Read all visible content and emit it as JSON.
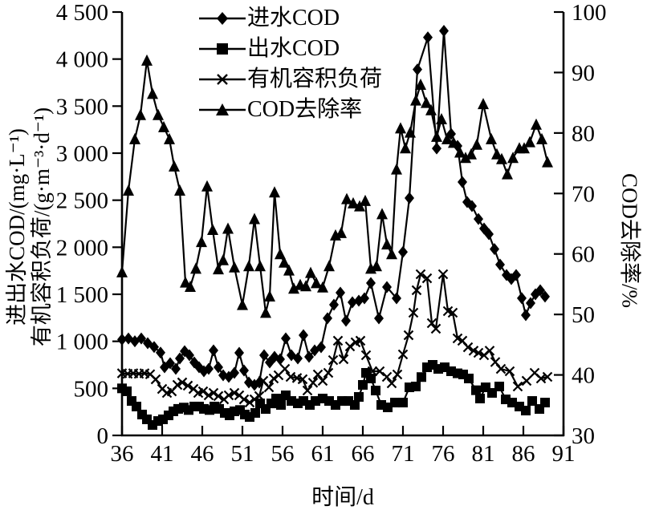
{
  "figure": {
    "background": "#ffffff",
    "line_color": "#000000"
  },
  "chart_data": {
    "type": "line",
    "title": "",
    "grid": false,
    "legend_position": "top-center-inside",
    "x_axis": {
      "label": "时间/d",
      "min": 36,
      "max": 91,
      "tick_step": 5,
      "tick_labels": [
        "36",
        "41",
        "46",
        "51",
        "56",
        "61",
        "66",
        "71",
        "76",
        "81",
        "86",
        "91"
      ]
    },
    "y_left": {
      "label_line1": "进出水COD/(mg·L⁻¹)",
      "label_line2": "有机容积负荷/(g·m⁻³·d⁻¹)",
      "min": 0,
      "max": 4500,
      "tick_step": 500,
      "tick_labels": [
        "0",
        "500",
        "1 000",
        "1 500",
        "2 000",
        "2 500",
        "3 000",
        "3 500",
        "4 000",
        "4 500"
      ]
    },
    "y_right": {
      "label": "COD去除率/%",
      "min": 30,
      "max": 100,
      "tick_step": 10,
      "tick_labels": [
        "30",
        "40",
        "50",
        "60",
        "70",
        "80",
        "90",
        "100"
      ]
    },
    "series": [
      {
        "name": "进水COD",
        "marker": "diamond",
        "axis": "left",
        "color": "#000000",
        "points": [
          [
            36,
            1020
          ],
          [
            36.8,
            1030
          ],
          [
            37.6,
            1000
          ],
          [
            38.4,
            1030
          ],
          [
            39.2,
            980
          ],
          [
            40,
            940
          ],
          [
            40.8,
            880
          ],
          [
            41.3,
            724
          ],
          [
            42,
            767
          ],
          [
            42.7,
            707
          ],
          [
            43.2,
            818
          ],
          [
            43.8,
            895
          ],
          [
            44.4,
            852
          ],
          [
            45,
            776
          ],
          [
            45.6,
            724
          ],
          [
            46.2,
            682
          ],
          [
            46.8,
            707
          ],
          [
            47.4,
            903
          ],
          [
            48,
            724
          ],
          [
            48.6,
            639
          ],
          [
            49.3,
            622
          ],
          [
            50,
            665
          ],
          [
            50.6,
            878
          ],
          [
            51.2,
            690
          ],
          [
            51.8,
            563
          ],
          [
            52.5,
            537
          ],
          [
            53.1,
            563
          ],
          [
            53.7,
            852
          ],
          [
            54.4,
            776
          ],
          [
            55,
            835
          ],
          [
            55.7,
            810
          ],
          [
            56.4,
            1031
          ],
          [
            57.1,
            852
          ],
          [
            57.9,
            818
          ],
          [
            58.6,
            1065
          ],
          [
            59.3,
            835
          ],
          [
            60,
            903
          ],
          [
            60.8,
            937
          ],
          [
            61.6,
            1245
          ],
          [
            62.4,
            1389
          ],
          [
            63.2,
            1517
          ],
          [
            63.9,
            1219
          ],
          [
            64.7,
            1415
          ],
          [
            65.5,
            1432
          ],
          [
            66.2,
            1457
          ],
          [
            67,
            1619
          ],
          [
            68,
            1244
          ],
          [
            69,
            1577
          ],
          [
            70.2,
            1457
          ],
          [
            71,
            1950
          ],
          [
            71.8,
            2523
          ],
          [
            72.8,
            3890
          ],
          [
            74.1,
            4230
          ],
          [
            75.2,
            3050
          ],
          [
            76.1,
            4300
          ],
          [
            77,
            3205
          ],
          [
            77.8,
            3077
          ],
          [
            78.4,
            2693
          ],
          [
            79,
            2480
          ],
          [
            79.6,
            2438
          ],
          [
            80.4,
            2300
          ],
          [
            81.1,
            2199
          ],
          [
            81.7,
            2139
          ],
          [
            82.4,
            1980
          ],
          [
            83.1,
            1815
          ],
          [
            83.9,
            1705
          ],
          [
            84.5,
            1662
          ],
          [
            85.1,
            1705
          ],
          [
            85.8,
            1458
          ],
          [
            86.3,
            1278
          ],
          [
            86.9,
            1406
          ],
          [
            87.5,
            1500
          ],
          [
            88.1,
            1543
          ],
          [
            88.7,
            1475
          ]
        ]
      },
      {
        "name": "出水COD",
        "marker": "square",
        "axis": "left",
        "color": "#000000",
        "points": [
          [
            36,
            500
          ],
          [
            36.6,
            469
          ],
          [
            37.2,
            366
          ],
          [
            37.8,
            307
          ],
          [
            38.5,
            222
          ],
          [
            39.1,
            171
          ],
          [
            39.8,
            111
          ],
          [
            40.5,
            153
          ],
          [
            41.1,
            171
          ],
          [
            41.8,
            213
          ],
          [
            42.4,
            256
          ],
          [
            43,
            282
          ],
          [
            43.7,
            296
          ],
          [
            44.3,
            270
          ],
          [
            45,
            307
          ],
          [
            45.6,
            307
          ],
          [
            46.2,
            282
          ],
          [
            46.9,
            270
          ],
          [
            47.5,
            307
          ],
          [
            48.1,
            282
          ],
          [
            48.8,
            239
          ],
          [
            49.4,
            213
          ],
          [
            50,
            256
          ],
          [
            50.7,
            270
          ],
          [
            51.3,
            222
          ],
          [
            51.9,
            196
          ],
          [
            52.6,
            239
          ],
          [
            53.2,
            340
          ],
          [
            53.9,
            281
          ],
          [
            54.6,
            340
          ],
          [
            55.2,
            392
          ],
          [
            55.8,
            324
          ],
          [
            56.4,
            426
          ],
          [
            57.1,
            366
          ],
          [
            57.9,
            341
          ],
          [
            58.6,
            366
          ],
          [
            59.4,
            324
          ],
          [
            60.1,
            366
          ],
          [
            61,
            392
          ],
          [
            61.8,
            366
          ],
          [
            62.6,
            324
          ],
          [
            63.4,
            366
          ],
          [
            64.2,
            366
          ],
          [
            65,
            324
          ],
          [
            65.5,
            409
          ],
          [
            66,
            537
          ],
          [
            66.4,
            665
          ],
          [
            67,
            605
          ],
          [
            67.6,
            477
          ],
          [
            68.3,
            324
          ],
          [
            69.1,
            298
          ],
          [
            70,
            349
          ],
          [
            71,
            349
          ],
          [
            71.8,
            511
          ],
          [
            72.6,
            520
          ],
          [
            73.3,
            620
          ],
          [
            74,
            724
          ],
          [
            74.7,
            750
          ],
          [
            75.4,
            707
          ],
          [
            76.2,
            724
          ],
          [
            77,
            682
          ],
          [
            77.8,
            660
          ],
          [
            78.5,
            648
          ],
          [
            79.2,
            605
          ],
          [
            80.1,
            480
          ],
          [
            80.6,
            392
          ],
          [
            81.3,
            511
          ],
          [
            82.1,
            452
          ],
          [
            83,
            520
          ],
          [
            83.8,
            383
          ],
          [
            84.6,
            349
          ],
          [
            85.5,
            307
          ],
          [
            86.3,
            264
          ],
          [
            87.1,
            366
          ],
          [
            88,
            281
          ],
          [
            88.7,
            349
          ]
        ]
      },
      {
        "name": "有机容积负荷",
        "marker": "x",
        "axis": "left",
        "color": "#000000",
        "points": [
          [
            36,
            660
          ],
          [
            36.7,
            655
          ],
          [
            37.4,
            660
          ],
          [
            38.1,
            655
          ],
          [
            38.8,
            660
          ],
          [
            39.5,
            650
          ],
          [
            40.2,
            596
          ],
          [
            41,
            494
          ],
          [
            41.6,
            452
          ],
          [
            42.2,
            468
          ],
          [
            42.9,
            537
          ],
          [
            43.5,
            563
          ],
          [
            44.2,
            529
          ],
          [
            44.9,
            494
          ],
          [
            45.5,
            452
          ],
          [
            46.1,
            468
          ],
          [
            46.8,
            426
          ],
          [
            47.4,
            452
          ],
          [
            48,
            418
          ],
          [
            48.7,
            383
          ],
          [
            49.3,
            426
          ],
          [
            50,
            452
          ],
          [
            50.6,
            426
          ],
          [
            51.2,
            383
          ],
          [
            51.9,
            350
          ],
          [
            52.5,
            383
          ],
          [
            53.1,
            418
          ],
          [
            53.6,
            580
          ],
          [
            54.3,
            511
          ],
          [
            54.9,
            605
          ],
          [
            55.5,
            639
          ],
          [
            56.3,
            707
          ],
          [
            57,
            622
          ],
          [
            57.8,
            610
          ],
          [
            58.5,
            597
          ],
          [
            59.1,
            477
          ],
          [
            59.8,
            560
          ],
          [
            60.4,
            648
          ],
          [
            61,
            580
          ],
          [
            61.7,
            665
          ],
          [
            62.3,
            800
          ],
          [
            62.9,
            1006
          ],
          [
            63.6,
            810
          ],
          [
            64.4,
            946
          ],
          [
            65.1,
            989
          ],
          [
            65.7,
            1006
          ],
          [
            66.4,
            852
          ],
          [
            67.2,
            682
          ],
          [
            68.1,
            682
          ],
          [
            69,
            622
          ],
          [
            69.6,
            554
          ],
          [
            70.3,
            648
          ],
          [
            71,
            861
          ],
          [
            71.7,
            1065
          ],
          [
            72.3,
            1304
          ],
          [
            72.7,
            1543
          ],
          [
            73.2,
            1713
          ],
          [
            74,
            1670
          ],
          [
            74.6,
            1193
          ],
          [
            75.1,
            1134
          ],
          [
            76,
            1713
          ],
          [
            76.6,
            1321
          ],
          [
            77.2,
            1304
          ],
          [
            77.8,
            1031
          ],
          [
            78.4,
            1006
          ],
          [
            79.1,
            937
          ],
          [
            79.8,
            900
          ],
          [
            80.4,
            878
          ],
          [
            81.1,
            852
          ],
          [
            81.8,
            900
          ],
          [
            82.5,
            780
          ],
          [
            83.2,
            707
          ],
          [
            84.3,
            682
          ],
          [
            85.3,
            520
          ],
          [
            86.4,
            580
          ],
          [
            87.4,
            665
          ],
          [
            88.2,
            605
          ],
          [
            89,
            622
          ]
        ]
      },
      {
        "name": "COD去除率",
        "marker": "triangle",
        "axis": "right",
        "color": "#000000",
        "points": [
          [
            36,
            57
          ],
          [
            36.8,
            70.5
          ],
          [
            37.6,
            79
          ],
          [
            38.3,
            83
          ],
          [
            39.1,
            92
          ],
          [
            39.8,
            86.5
          ],
          [
            40.5,
            83
          ],
          [
            41.2,
            81
          ],
          [
            41.9,
            79
          ],
          [
            42.5,
            74.5
          ],
          [
            43.2,
            70.5
          ],
          [
            43.9,
            55.3
          ],
          [
            44.5,
            54.6
          ],
          [
            45.2,
            57.6
          ],
          [
            45.9,
            62
          ],
          [
            46.6,
            71.2
          ],
          [
            47.3,
            64
          ],
          [
            48,
            57.5
          ],
          [
            48.6,
            59
          ],
          [
            49.2,
            64.2
          ],
          [
            50,
            57.8
          ],
          [
            51,
            51.6
          ],
          [
            51.8,
            58
          ],
          [
            52.5,
            65.8
          ],
          [
            53.2,
            58
          ],
          [
            53.9,
            50.3
          ],
          [
            54.4,
            53
          ],
          [
            55,
            70.2
          ],
          [
            55.7,
            60
          ],
          [
            56.2,
            58.6
          ],
          [
            56.8,
            57.3
          ],
          [
            57.4,
            54.3
          ],
          [
            58.2,
            54.9
          ],
          [
            58.9,
            54.7
          ],
          [
            59.5,
            56.9
          ],
          [
            60.2,
            55.2
          ],
          [
            61,
            54.5
          ],
          [
            61.8,
            58
          ],
          [
            62.6,
            63.1
          ],
          [
            63.3,
            63.5
          ],
          [
            64,
            69.1
          ],
          [
            64.8,
            68.4
          ],
          [
            65.6,
            67.9
          ],
          [
            66.3,
            68.8
          ],
          [
            67,
            57.6
          ],
          [
            67.7,
            58
          ],
          [
            68.4,
            66.6
          ],
          [
            69,
            61.6
          ],
          [
            69.6,
            60
          ],
          [
            70.2,
            74
          ],
          [
            70.7,
            80.8
          ],
          [
            71.3,
            77.5
          ],
          [
            71.9,
            80.1
          ],
          [
            72.6,
            85.4
          ],
          [
            73.2,
            88
          ],
          [
            73.9,
            85
          ],
          [
            74.5,
            83.8
          ],
          [
            75.2,
            79.4
          ],
          [
            75.8,
            82.3
          ],
          [
            76.5,
            79
          ],
          [
            77.3,
            78.4
          ],
          [
            78.1,
            76.8
          ],
          [
            78.8,
            75.9
          ],
          [
            79.5,
            76.5
          ],
          [
            80.2,
            78.1
          ],
          [
            81,
            84.8
          ],
          [
            82,
            79
          ],
          [
            82.7,
            76.5
          ],
          [
            83.3,
            75.7
          ],
          [
            84,
            73.2
          ],
          [
            84.7,
            75.9
          ],
          [
            85.5,
            77.5
          ],
          [
            86.1,
            77.5
          ],
          [
            86.8,
            78.5
          ],
          [
            87.6,
            81.4
          ],
          [
            88.3,
            79
          ],
          [
            89,
            75.2
          ]
        ]
      }
    ]
  }
}
